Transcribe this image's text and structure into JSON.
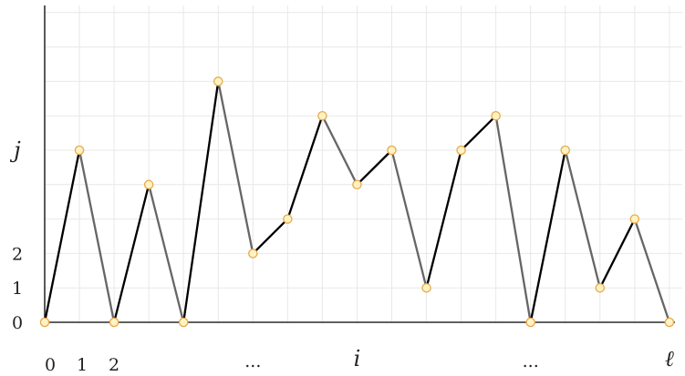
{
  "chart_data": {
    "type": "line",
    "x_tick_labels": [
      {
        "x": 0,
        "text": "0"
      },
      {
        "x": 1,
        "text": "1"
      },
      {
        "x": 2,
        "text": "2"
      },
      {
        "x": 6,
        "text": "..."
      },
      {
        "x": 9,
        "text": "i"
      },
      {
        "x": 14,
        "text": "..."
      },
      {
        "x": 18,
        "text": "ℓ"
      }
    ],
    "y_tick_labels": [
      {
        "y": 0,
        "text": "0"
      },
      {
        "y": 1,
        "text": "1"
      },
      {
        "y": 2,
        "text": "2"
      },
      {
        "y": 5,
        "text": "j"
      }
    ],
    "points": [
      [
        0,
        0
      ],
      [
        1,
        5
      ],
      [
        2,
        0
      ],
      [
        3,
        4
      ],
      [
        4,
        0
      ],
      [
        5,
        7
      ],
      [
        6,
        2
      ],
      [
        7,
        3
      ],
      [
        8,
        6
      ],
      [
        9,
        4
      ],
      [
        10,
        5
      ],
      [
        11,
        1
      ],
      [
        12,
        5
      ],
      [
        13,
        6
      ],
      [
        14,
        0
      ],
      [
        15,
        5
      ],
      [
        16,
        1
      ],
      [
        17,
        3
      ],
      [
        18,
        0
      ]
    ],
    "segment_colors": [
      "black",
      "gray",
      "black",
      "gray",
      "black",
      "gray",
      "black",
      "black",
      "gray",
      "black",
      "gray",
      "black",
      "black",
      "gray",
      "black",
      "gray",
      "black",
      "gray"
    ],
    "xlim": [
      0,
      18
    ],
    "ylim": [
      0,
      9
    ],
    "grid": true
  },
  "colors": {
    "black": "#000000",
    "gray": "#666666",
    "grid": "#e8e8e8",
    "axis": "#000000",
    "point_fill": "#fff3c4",
    "point_stroke": "#e8a94a"
  }
}
